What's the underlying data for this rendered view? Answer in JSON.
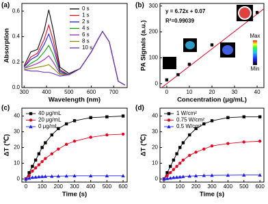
{
  "chart_data": [
    {
      "type": "line",
      "panel_label": "(a)",
      "x_label": "Wavelength (nm)",
      "y_label": "Absorption",
      "x": [
        300,
        330,
        360,
        390,
        410,
        430,
        460,
        500,
        550,
        600,
        630,
        650,
        680,
        720,
        750
      ],
      "xlim": [
        290,
        760
      ],
      "xticks": [
        300,
        400,
        500,
        600,
        700
      ],
      "ylim": [
        0,
        0.66
      ],
      "yticks": [
        {
          "value": 0,
          "label": "0.0"
        },
        {
          "value": 0.2,
          "label": "0.2"
        },
        {
          "value": 0.4,
          "label": "0.4"
        },
        {
          "value": 0.6,
          "label": "0.6"
        }
      ],
      "legend": "upper right",
      "series": [
        {
          "name": "0 s",
          "color": "#000000",
          "values": [
            0.17,
            0.28,
            0.3,
            0.45,
            0.61,
            0.45,
            0.16,
            0.11,
            0.15,
            0.28,
            0.38,
            0.44,
            0.36,
            0.05,
            0.02
          ]
        },
        {
          "name": "1 s",
          "color": "#e8001c",
          "values": [
            0.16,
            0.24,
            0.27,
            0.38,
            0.49,
            0.37,
            0.14,
            0.1,
            0.15,
            0.28,
            0.38,
            0.44,
            0.36,
            0.05,
            0.02
          ]
        },
        {
          "name": "2 s",
          "color": "#1a1aff",
          "values": [
            0.16,
            0.22,
            0.25,
            0.34,
            0.42,
            0.32,
            0.13,
            0.1,
            0.15,
            0.28,
            0.38,
            0.44,
            0.36,
            0.05,
            0.02
          ]
        },
        {
          "name": "4 s",
          "color": "#00a000",
          "values": [
            0.15,
            0.19,
            0.22,
            0.28,
            0.33,
            0.26,
            0.12,
            0.1,
            0.15,
            0.28,
            0.38,
            0.44,
            0.36,
            0.05,
            0.02
          ]
        },
        {
          "name": "6 s",
          "color": "#a020c0",
          "values": [
            0.15,
            0.17,
            0.19,
            0.22,
            0.25,
            0.2,
            0.11,
            0.1,
            0.15,
            0.28,
            0.38,
            0.44,
            0.36,
            0.05,
            0.02
          ]
        },
        {
          "name": "8 s",
          "color": "#8a8a00",
          "values": [
            0.14,
            0.15,
            0.16,
            0.17,
            0.18,
            0.15,
            0.1,
            0.1,
            0.15,
            0.28,
            0.38,
            0.44,
            0.36,
            0.05,
            0.02
          ]
        },
        {
          "name": "10 s",
          "color": "#6a2cc8",
          "values": [
            0.14,
            0.13,
            0.13,
            0.12,
            0.12,
            0.11,
            0.09,
            0.1,
            0.15,
            0.28,
            0.38,
            0.44,
            0.36,
            0.05,
            0.02
          ]
        }
      ]
    },
    {
      "type": "scatter",
      "panel_label": "(b)",
      "x_label": "Concentration (μg/mL)",
      "y_label": "PA Signals (a.u.)",
      "x": [
        0,
        5,
        10,
        20,
        40
      ],
      "values": [
        15,
        35,
        75,
        150,
        275
      ],
      "color": "#000000",
      "xlim": [
        -3,
        43
      ],
      "xticks": [
        0,
        10,
        20,
        30,
        40
      ],
      "ylim": [
        -15,
        310
      ],
      "yticks": [
        0,
        100,
        200,
        300
      ],
      "fit": {
        "slope": 6.72,
        "intercept": 0.07,
        "color": "#e8001c"
      },
      "equation": "y = 6.72x + 0.07",
      "r_squared": "R²=0.99039",
      "colorbar": {
        "max_label": "Max",
        "min_label": "Min"
      }
    },
    {
      "type": "line",
      "panel_label": "(c)",
      "x_label": "Time (s)",
      "y_label": "ΔT (℃)",
      "x": [
        0,
        20,
        40,
        60,
        80,
        100,
        120,
        160,
        200,
        250,
        300,
        400,
        500,
        600
      ],
      "xlim": [
        -25,
        625
      ],
      "xticks": [
        0,
        100,
        200,
        300,
        400,
        500,
        600
      ],
      "ylim": [
        -2,
        45
      ],
      "yticks": [
        0,
        10,
        20,
        30,
        40
      ],
      "legend": "upper left",
      "series": [
        {
          "name": "40 μg/mL",
          "color": "#000000",
          "marker": "square",
          "values": [
            0,
            4,
            8,
            12,
            16,
            20,
            23,
            28,
            32,
            35,
            37,
            39,
            39.5,
            40
          ]
        },
        {
          "name": "20 μg/mL",
          "color": "#e8001c",
          "marker": "circle",
          "values": [
            0,
            2,
            5,
            7,
            9,
            11,
            13,
            16,
            19,
            22,
            24,
            26.5,
            28,
            28.5
          ]
        },
        {
          "name": "0 μg/mL",
          "color": "#1a1aff",
          "marker": "triangle",
          "values": [
            0,
            0.5,
            1,
            1.2,
            1.4,
            1.5,
            1.6,
            1.7,
            1.8,
            1.9,
            2,
            2,
            2,
            2
          ]
        }
      ]
    },
    {
      "type": "line",
      "panel_label": "(d)",
      "x_label": "Time (s)",
      "y_label": "ΔT (℃)",
      "x": [
        0,
        20,
        40,
        60,
        80,
        100,
        120,
        160,
        200,
        250,
        300,
        400,
        500,
        600
      ],
      "xlim": [
        -25,
        625
      ],
      "xticks": [
        0,
        100,
        200,
        300,
        400,
        500,
        600
      ],
      "ylim": [
        -2,
        45
      ],
      "yticks": [
        0,
        10,
        20,
        30,
        40
      ],
      "legend": "upper left",
      "series": [
        {
          "name": "1 W/cm²",
          "color": "#000000",
          "marker": "square",
          "values": [
            0,
            4,
            8,
            12,
            16,
            20,
            23,
            28,
            32,
            35,
            37,
            39,
            39.5,
            39.5
          ]
        },
        {
          "name": "0.75 W/cm²",
          "color": "#e8001c",
          "marker": "circle",
          "values": [
            0,
            2,
            4,
            6,
            8,
            10,
            12,
            15,
            17,
            19,
            21,
            22.5,
            23.5,
            24
          ]
        },
        {
          "name": "0.5 W/cm²",
          "color": "#1a1aff",
          "marker": "triangle",
          "values": [
            0,
            0.3,
            0.6,
            0.9,
            1.1,
            1.3,
            1.5,
            1.8,
            2,
            2.2,
            2.3,
            2.4,
            2.5,
            2.5
          ]
        }
      ]
    }
  ]
}
